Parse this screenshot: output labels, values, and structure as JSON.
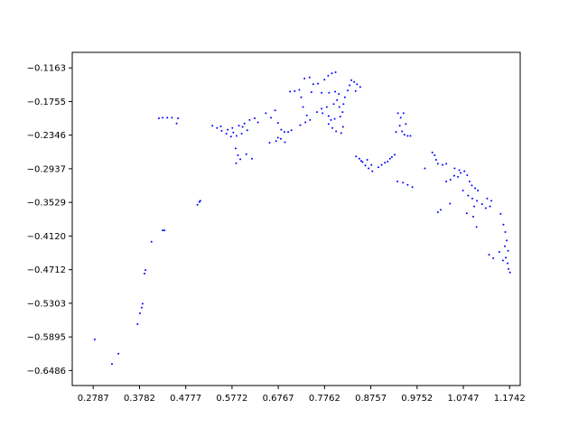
{
  "chart_data": {
    "type": "scatter",
    "title": "",
    "xlabel": "",
    "ylabel": "",
    "xlim": [
      0.2336,
      1.197
    ],
    "ylim": [
      -0.675,
      -0.089
    ],
    "xticks": [
      0.2787,
      0.3782,
      0.4777,
      0.5772,
      0.6767,
      0.7762,
      0.8757,
      0.9752,
      1.0747,
      1.1742
    ],
    "yticks": [
      -0.1163,
      -0.1755,
      -0.2346,
      -0.2937,
      -0.3529,
      -0.412,
      -0.4712,
      -0.5303,
      -0.5895,
      -0.6486
    ],
    "xtick_labels": [
      "0.2787",
      "0.3782",
      "0.4777",
      "0.5772",
      "0.6767",
      "0.7762",
      "0.8757",
      "0.9752",
      "1.0747",
      "1.1742"
    ],
    "ytick_labels": [
      "−0.1163",
      "−0.1755",
      "−0.2346",
      "−0.2937",
      "−0.3529",
      "−0.4120",
      "−0.4712",
      "−0.5303",
      "−0.5895",
      "−0.6486"
    ],
    "grid": false,
    "legend": "none",
    "marker_color": "#0000ff",
    "series": [
      {
        "points": [
          [
            0.282,
            -0.594
          ],
          [
            0.319,
            -0.637
          ],
          [
            0.333,
            -0.619
          ],
          [
            0.374,
            -0.567
          ],
          [
            0.379,
            -0.548
          ],
          [
            0.385,
            -0.531
          ],
          [
            0.383,
            -0.538
          ],
          [
            0.389,
            -0.478
          ],
          [
            0.391,
            -0.472
          ],
          [
            0.404,
            -0.422
          ],
          [
            0.428,
            -0.402
          ],
          [
            0.432,
            -0.402
          ],
          [
            0.503,
            -0.357
          ],
          [
            0.507,
            -0.352
          ],
          [
            0.509,
            -0.35
          ],
          [
            0.42,
            -0.205
          ],
          [
            0.428,
            -0.204
          ],
          [
            0.438,
            -0.204
          ],
          [
            0.448,
            -0.204
          ],
          [
            0.458,
            -0.214
          ],
          [
            0.461,
            -0.205
          ],
          [
            0.535,
            -0.218
          ],
          [
            0.545,
            -0.222
          ],
          [
            0.555,
            -0.227
          ],
          [
            0.565,
            -0.232
          ],
          [
            0.575,
            -0.237
          ],
          [
            0.58,
            -0.23
          ],
          [
            0.568,
            -0.225
          ],
          [
            0.553,
            -0.219
          ],
          [
            0.578,
            -0.222
          ],
          [
            0.592,
            -0.218
          ],
          [
            0.604,
            -0.214
          ],
          [
            0.615,
            -0.208
          ],
          [
            0.626,
            -0.205
          ],
          [
            0.633,
            -0.212
          ],
          [
            0.61,
            -0.226
          ],
          [
            0.598,
            -0.232
          ],
          [
            0.587,
            -0.236
          ],
          [
            0.6,
            -0.22
          ],
          [
            0.585,
            -0.258
          ],
          [
            0.59,
            -0.27
          ],
          [
            0.586,
            -0.284
          ],
          [
            0.595,
            -0.277
          ],
          [
            0.608,
            -0.268
          ],
          [
            0.62,
            -0.276
          ],
          [
            0.65,
            -0.196
          ],
          [
            0.661,
            -0.204
          ],
          [
            0.67,
            -0.191
          ],
          [
            0.676,
            -0.213
          ],
          [
            0.683,
            -0.225
          ],
          [
            0.69,
            -0.229
          ],
          [
            0.698,
            -0.229
          ],
          [
            0.705,
            -0.226
          ],
          [
            0.658,
            -0.248
          ],
          [
            0.672,
            -0.245
          ],
          [
            0.682,
            -0.241
          ],
          [
            0.691,
            -0.247
          ],
          [
            0.676,
            -0.239
          ],
          [
            0.702,
            -0.158
          ],
          [
            0.712,
            -0.157
          ],
          [
            0.722,
            -0.155
          ],
          [
            0.726,
            -0.168
          ],
          [
            0.73,
            -0.185
          ],
          [
            0.738,
            -0.2
          ],
          [
            0.745,
            -0.208
          ],
          [
            0.735,
            -0.212
          ],
          [
            0.724,
            -0.217
          ],
          [
            0.733,
            -0.135
          ],
          [
            0.744,
            -0.133
          ],
          [
            0.752,
            -0.145
          ],
          [
            0.748,
            -0.159
          ],
          [
            0.762,
            -0.144
          ],
          [
            0.776,
            -0.137
          ],
          [
            0.784,
            -0.13
          ],
          [
            0.792,
            -0.126
          ],
          [
            0.8,
            -0.124
          ],
          [
            0.76,
            -0.194
          ],
          [
            0.772,
            -0.196
          ],
          [
            0.785,
            -0.201
          ],
          [
            0.798,
            -0.206
          ],
          [
            0.81,
            -0.202
          ],
          [
            0.815,
            -0.194
          ],
          [
            0.808,
            -0.185
          ],
          [
            0.796,
            -0.18
          ],
          [
            0.781,
            -0.185
          ],
          [
            0.77,
            -0.188
          ],
          [
            0.785,
            -0.215
          ],
          [
            0.793,
            -0.222
          ],
          [
            0.801,
            -0.228
          ],
          [
            0.812,
            -0.231
          ],
          [
            0.816,
            -0.22
          ],
          [
            0.79,
            -0.208
          ],
          [
            0.77,
            -0.16
          ],
          [
            0.786,
            -0.16
          ],
          [
            0.799,
            -0.158
          ],
          [
            0.807,
            -0.162
          ],
          [
            0.803,
            -0.173
          ],
          [
            0.817,
            -0.18
          ],
          [
            0.82,
            -0.168
          ],
          [
            0.826,
            -0.156
          ],
          [
            0.83,
            -0.147
          ],
          [
            0.834,
            -0.138
          ],
          [
            0.84,
            -0.141
          ],
          [
            0.846,
            -0.145
          ],
          [
            0.853,
            -0.15
          ],
          [
            0.843,
            -0.157
          ],
          [
            0.844,
            -0.272
          ],
          [
            0.851,
            -0.276
          ],
          [
            0.858,
            -0.282
          ],
          [
            0.864,
            -0.288
          ],
          [
            0.871,
            -0.293
          ],
          [
            0.879,
            -0.298
          ],
          [
            0.877,
            -0.287
          ],
          [
            0.868,
            -0.278
          ],
          [
            0.855,
            -0.28
          ],
          [
            0.892,
            -0.291
          ],
          [
            0.899,
            -0.287
          ],
          [
            0.906,
            -0.283
          ],
          [
            0.912,
            -0.281
          ],
          [
            0.917,
            -0.276
          ],
          [
            0.921,
            -0.273
          ],
          [
            0.927,
            -0.269
          ],
          [
            0.933,
            -0.316
          ],
          [
            0.945,
            -0.318
          ],
          [
            0.955,
            -0.322
          ],
          [
            0.965,
            -0.326
          ],
          [
            0.934,
            -0.196
          ],
          [
            0.94,
            -0.204
          ],
          [
            0.938,
            -0.218
          ],
          [
            0.943,
            -0.228
          ],
          [
            0.948,
            -0.234
          ],
          [
            0.955,
            -0.236
          ],
          [
            0.961,
            -0.236
          ],
          [
            0.951,
            -0.215
          ],
          [
            0.946,
            -0.196
          ],
          [
            0.93,
            -0.229
          ],
          [
            0.992,
            -0.293
          ],
          [
            1.008,
            -0.265
          ],
          [
            1.013,
            -0.27
          ],
          [
            1.016,
            -0.278
          ],
          [
            1.02,
            -0.285
          ],
          [
            1.03,
            -0.287
          ],
          [
            1.038,
            -0.285
          ],
          [
            1.038,
            -0.316
          ],
          [
            1.047,
            -0.313
          ],
          [
            1.055,
            -0.306
          ],
          [
            1.063,
            -0.308
          ],
          [
            1.069,
            -0.301
          ],
          [
            1.02,
            -0.37
          ],
          [
            1.026,
            -0.366
          ],
          [
            1.046,
            -0.355
          ],
          [
            1.056,
            -0.293
          ],
          [
            1.066,
            -0.296
          ],
          [
            1.077,
            -0.298
          ],
          [
            1.083,
            -0.305
          ],
          [
            1.088,
            -0.316
          ],
          [
            1.093,
            -0.323
          ],
          [
            1.1,
            -0.328
          ],
          [
            1.106,
            -0.332
          ],
          [
            1.074,
            -0.332
          ],
          [
            1.085,
            -0.341
          ],
          [
            1.094,
            -0.346
          ],
          [
            1.104,
            -0.35
          ],
          [
            1.115,
            -0.356
          ],
          [
            1.123,
            -0.363
          ],
          [
            1.132,
            -0.36
          ],
          [
            1.135,
            -0.35
          ],
          [
            1.126,
            -0.346
          ],
          [
            1.082,
            -0.372
          ],
          [
            1.096,
            -0.378
          ],
          [
            1.103,
            -0.396
          ],
          [
            1.098,
            -0.36
          ],
          [
            1.155,
            -0.373
          ],
          [
            1.161,
            -0.392
          ],
          [
            1.165,
            -0.405
          ],
          [
            1.168,
            -0.42
          ],
          [
            1.164,
            -0.43
          ],
          [
            1.171,
            -0.438
          ],
          [
            1.166,
            -0.45
          ],
          [
            1.17,
            -0.46
          ],
          [
            1.172,
            -0.47
          ],
          [
            1.175,
            -0.476
          ],
          [
            1.16,
            -0.455
          ],
          [
            1.13,
            -0.445
          ],
          [
            1.139,
            -0.451
          ],
          [
            1.152,
            -0.44
          ]
        ]
      }
    ]
  }
}
